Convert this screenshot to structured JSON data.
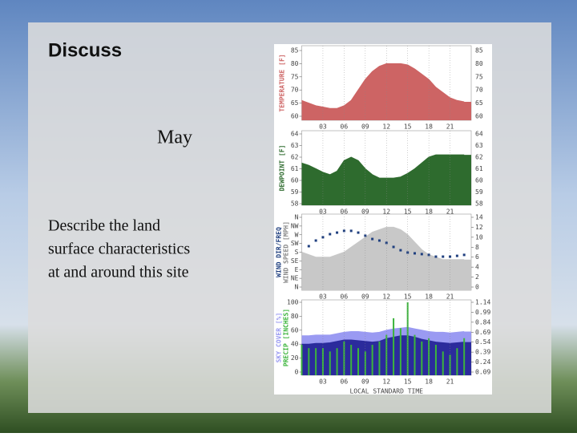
{
  "slide": {
    "title": "Discuss",
    "subtitle": "May",
    "body": [
      "Describe the land",
      "surface characteristics",
      "at and around this site"
    ]
  },
  "chart_data": [
    {
      "type": "area",
      "ylabel": "TEMPERATURE [F]",
      "x": [
        0,
        1,
        2,
        3,
        4,
        5,
        6,
        7,
        8,
        9,
        10,
        11,
        12,
        13,
        14,
        15,
        16,
        17,
        18,
        19,
        20,
        21,
        22,
        23
      ],
      "xlim": [
        0,
        24
      ],
      "xticks": [
        {
          "value": 3,
          "label": "03"
        },
        {
          "value": 6,
          "label": "06"
        },
        {
          "value": 9,
          "label": "09"
        },
        {
          "value": 12,
          "label": "12"
        },
        {
          "value": 15,
          "label": "15"
        },
        {
          "value": 18,
          "label": "18"
        },
        {
          "value": 21,
          "label": "21"
        }
      ],
      "ylim": [
        60,
        85
      ],
      "yticks": [
        85,
        80,
        75,
        70,
        65,
        60
      ],
      "grid": true,
      "series": [
        {
          "color": "#cd6464",
          "values": [
            66,
            65,
            64,
            63.5,
            63,
            63,
            64,
            66,
            70,
            74,
            77,
            79,
            80,
            80,
            80,
            79.5,
            78,
            76,
            74,
            71,
            69,
            67,
            66,
            65.5
          ]
        }
      ]
    },
    {
      "type": "area",
      "ylabel": "DEWPOINT [F]",
      "x": [
        0,
        1,
        2,
        3,
        4,
        5,
        6,
        7,
        8,
        9,
        10,
        11,
        12,
        13,
        14,
        15,
        16,
        17,
        18,
        19,
        20,
        21,
        22,
        23
      ],
      "xlim": [
        0,
        24
      ],
      "xticks": [
        {
          "value": 3,
          "label": "03"
        },
        {
          "value": 6,
          "label": "06"
        },
        {
          "value": 9,
          "label": "09"
        },
        {
          "value": 12,
          "label": "12"
        },
        {
          "value": 15,
          "label": "15"
        },
        {
          "value": 18,
          "label": "18"
        },
        {
          "value": 21,
          "label": "21"
        }
      ],
      "ylim": [
        58,
        64
      ],
      "yticks": [
        64,
        63,
        62,
        61,
        60,
        59,
        58
      ],
      "grid": true,
      "series": [
        {
          "color": "#2e6b2e",
          "values": [
            61.5,
            61.3,
            61,
            60.7,
            60.5,
            60.8,
            61.7,
            62,
            61.7,
            61,
            60.5,
            60.2,
            60.2,
            60.2,
            60.3,
            60.6,
            61,
            61.5,
            62,
            62.2,
            62.2,
            62.2,
            62.2,
            62.2
          ]
        }
      ]
    },
    {
      "type": "combo",
      "ylabel": "WIND DIR/FREQ",
      "y2label": "WIND SPEED [MPH]",
      "x": [
        0,
        1,
        2,
        3,
        4,
        5,
        6,
        7,
        8,
        9,
        10,
        11,
        12,
        13,
        14,
        15,
        16,
        17,
        18,
        19,
        20,
        21,
        22,
        23
      ],
      "xlim": [
        0,
        24
      ],
      "xticks": [
        {
          "value": 3,
          "label": "03"
        },
        {
          "value": 6,
          "label": "06"
        },
        {
          "value": 9,
          "label": "09"
        },
        {
          "value": 12,
          "label": "12"
        },
        {
          "value": 15,
          "label": "15"
        },
        {
          "value": 18,
          "label": "18"
        },
        {
          "value": 21,
          "label": "21"
        }
      ],
      "ylim": [
        0,
        360
      ],
      "yticks": [
        {
          "value": 360,
          "label": "N"
        },
        {
          "value": 315,
          "label": "NW"
        },
        {
          "value": 270,
          "label": "W"
        },
        {
          "value": 225,
          "label": "SW"
        },
        {
          "value": 180,
          "label": "S"
        },
        {
          "value": 135,
          "label": "SE"
        },
        {
          "value": 90,
          "label": "E"
        },
        {
          "value": 45,
          "label": "NE"
        },
        {
          "value": 0,
          "label": "N"
        }
      ],
      "y2lim": [
        0,
        14
      ],
      "y2ticks": [
        14,
        12,
        10,
        8,
        6,
        4,
        2,
        0
      ],
      "grid": true,
      "series": [
        {
          "type": "area",
          "axis": "y2",
          "color": "#c8c8c8",
          "values": [
            7,
            6.5,
            6,
            6,
            6,
            6.5,
            7,
            8,
            9,
            10,
            11,
            11.5,
            12,
            12,
            11.5,
            10.5,
            9,
            7.5,
            6.5,
            6,
            5.5,
            5.5,
            5.5,
            5.5
          ]
        },
        {
          "type": "dots",
          "color": "#1f3f7f",
          "values": [
            null,
            211,
            240,
            257,
            273,
            281,
            290,
            290,
            281,
            265,
            248,
            240,
            228,
            207,
            190,
            178,
            174,
            170,
            166,
            157,
            157,
            157,
            161,
            166
          ]
        }
      ]
    },
    {
      "type": "combo",
      "ylabel": "SKY COVER [%]",
      "y2label": "PRECIP [INCHES]",
      "xlabel": "LOCAL STANDARD TIME",
      "x": [
        0,
        1,
        2,
        3,
        4,
        5,
        6,
        7,
        8,
        9,
        10,
        11,
        12,
        13,
        14,
        15,
        16,
        17,
        18,
        19,
        20,
        21,
        22,
        23
      ],
      "xlim": [
        0,
        24
      ],
      "xticks": [
        {
          "value": 3,
          "label": "03"
        },
        {
          "value": 6,
          "label": "06"
        },
        {
          "value": 9,
          "label": "09"
        },
        {
          "value": 12,
          "label": "12"
        },
        {
          "value": 15,
          "label": "15"
        },
        {
          "value": 18,
          "label": "18"
        },
        {
          "value": 21,
          "label": "21"
        }
      ],
      "ylim": [
        0,
        100
      ],
      "yticks": [
        100,
        80,
        60,
        40,
        20,
        0
      ],
      "y2lim": [
        0.09,
        1.14
      ],
      "y2ticks": [
        1.14,
        0.99,
        0.84,
        0.69,
        0.54,
        0.39,
        0.24,
        0.09
      ],
      "grid": true,
      "series": [
        {
          "type": "area",
          "color": "#9a9af2",
          "values": [
            52,
            52,
            53,
            53,
            53,
            55,
            57,
            58,
            58,
            57,
            56,
            57,
            60,
            62,
            63,
            64,
            62,
            60,
            58,
            57,
            57,
            56,
            57,
            58
          ]
        },
        {
          "type": "area",
          "color": "#2b2b9c",
          "values": [
            40,
            40,
            41,
            41,
            42,
            44,
            46,
            46,
            45,
            44,
            43,
            44,
            48,
            50,
            52,
            52,
            50,
            47,
            45,
            43,
            42,
            41,
            42,
            43
          ]
        },
        {
          "type": "bar",
          "axis": "y2",
          "color": "#3cb43c",
          "values": [
            0.5,
            0.45,
            0.45,
            0.45,
            0.4,
            0.45,
            0.55,
            0.5,
            0.45,
            0.4,
            0.5,
            0.55,
            0.65,
            0.9,
            0.75,
            1.14,
            0.65,
            0.55,
            0.6,
            0.5,
            0.4,
            0.35,
            0.45,
            0.6
          ]
        }
      ]
    }
  ]
}
